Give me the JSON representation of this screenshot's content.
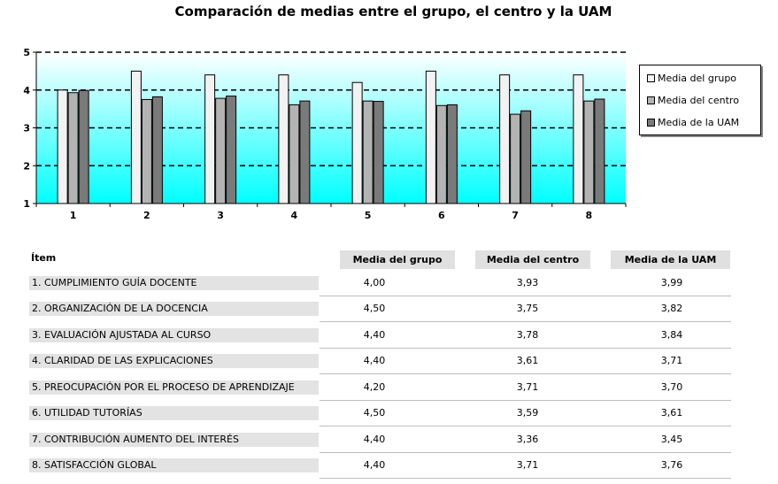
{
  "chart_data": {
    "type": "bar",
    "title": "Comparación de medias entre el grupo, el centro y la UAM",
    "xlabel": "",
    "ylabel": "",
    "ylim": [
      1,
      5
    ],
    "yticks": [
      "1",
      "2",
      "3",
      "4",
      "5"
    ],
    "categories": [
      "1",
      "2",
      "3",
      "4",
      "5",
      "6",
      "7",
      "8"
    ],
    "grid": "dashed horizontal",
    "legend_position": "right",
    "background_gradient": [
      "#ffffff",
      "#00ffff"
    ],
    "series": [
      {
        "name": "Media del grupo",
        "color": "#f2f2f2",
        "values": [
          4.0,
          4.5,
          4.4,
          4.4,
          4.2,
          4.5,
          4.4,
          4.4
        ]
      },
      {
        "name": "Media del centro",
        "color": "#b3b3b3",
        "values": [
          3.93,
          3.75,
          3.78,
          3.61,
          3.71,
          3.59,
          3.36,
          3.71
        ]
      },
      {
        "name": "Media de la UAM",
        "color": "#7a7a7a",
        "values": [
          3.99,
          3.82,
          3.84,
          3.71,
          3.7,
          3.61,
          3.45,
          3.76
        ]
      }
    ]
  },
  "table": {
    "item_header": "Ítem",
    "col_headers": [
      "Media del grupo",
      "Media del centro",
      "Media de la UAM"
    ],
    "rows": [
      {
        "label": "1. CUMPLIMIENTO GUÍA DOCENTE",
        "values": [
          "4,00",
          "3,93",
          "3,99"
        ]
      },
      {
        "label": "2. ORGANIZACIÓN DE LA DOCENCIA",
        "values": [
          "4,50",
          "3,75",
          "3,82"
        ]
      },
      {
        "label": "3. EVALUACIÓN AJUSTADA AL CURSO",
        "values": [
          "4,40",
          "3,78",
          "3,84"
        ]
      },
      {
        "label": "4. CLARIDAD DE LAS EXPLICACIONES",
        "values": [
          "4,40",
          "3,61",
          "3,71"
        ]
      },
      {
        "label": "5. PREOCUPACIÓN POR EL PROCESO DE APRENDIZAJE",
        "values": [
          "4,20",
          "3,71",
          "3,70"
        ]
      },
      {
        "label": "6. UTILIDAD TUTORÍAS",
        "values": [
          "4,50",
          "3,59",
          "3,61"
        ]
      },
      {
        "label": "7. CONTRIBUCIÓN AUMENTO DEL INTERÉS",
        "values": [
          "4,40",
          "3,36",
          "3,45"
        ]
      },
      {
        "label": "8. SATISFACCIÓN GLOBAL",
        "values": [
          "4,40",
          "3,71",
          "3,76"
        ]
      }
    ]
  }
}
